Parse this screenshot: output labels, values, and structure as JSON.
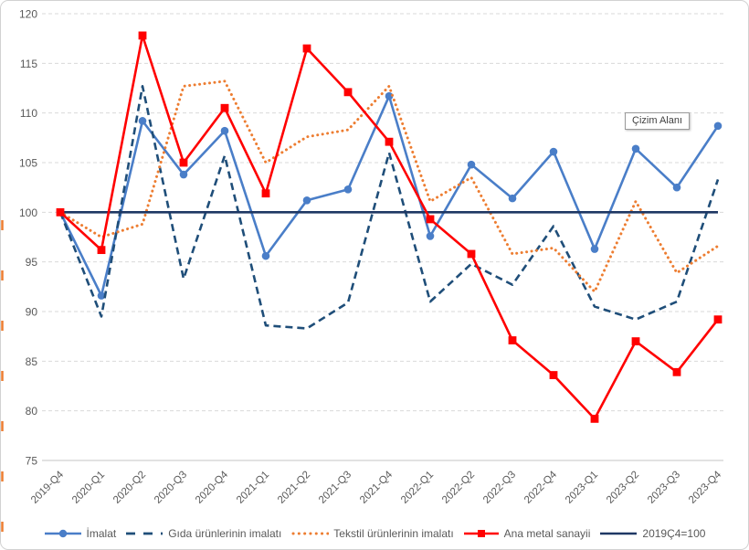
{
  "tooltip": {
    "label": "Çizim Alanı"
  },
  "chart_data": {
    "type": "line",
    "title": "",
    "xlabel": "",
    "ylabel": "",
    "ylim": [
      75,
      120
    ],
    "ytick_step": 5,
    "grid": true,
    "legend_position": "bottom",
    "categories": [
      "2019-Q4",
      "2020-Q1",
      "2020-Q2",
      "2020-Q3",
      "2020-Q4",
      "2021-Q1",
      "2021-Q2",
      "2021-Q3",
      "2021-Q4",
      "2022-Q1",
      "2022-Q2",
      "2022-Q3",
      "2022-Q4",
      "2023-Q1",
      "2023-Q2",
      "2023-Q3",
      "2023-Q4"
    ],
    "series": [
      {
        "id": "imalat",
        "name": "İmalat",
        "color": "#4a7ec8",
        "style": "solid",
        "marker": "circle",
        "draw_order": 0,
        "values": [
          100,
          91.6,
          109.2,
          103.8,
          108.2,
          95.6,
          101.2,
          102.3,
          111.7,
          97.6,
          104.8,
          101.4,
          106.1,
          96.3,
          106.4,
          102.5,
          108.7
        ]
      },
      {
        "id": "gida-urunlerinin-imalati",
        "name": "Gıda ürünlerinin imalatı",
        "color": "#1f4e79",
        "style": "dashed",
        "marker": "none",
        "draw_order": 1,
        "values": [
          100,
          89.5,
          112.7,
          93.3,
          105.7,
          88.6,
          88.3,
          90.9,
          106.0,
          91.0,
          94.8,
          92.7,
          98.6,
          90.5,
          89.2,
          91.0,
          103.3
        ]
      },
      {
        "id": "tekstil-urunlerinin-imalati",
        "name": "Tekstil ürünlerinin imalatı",
        "color": "#ed7d31",
        "style": "dotted",
        "marker": "none",
        "draw_order": 2,
        "values": [
          100,
          97.5,
          98.8,
          112.7,
          113.2,
          105.0,
          107.6,
          108.3,
          112.7,
          101.1,
          103.5,
          95.8,
          96.4,
          92.0,
          101.1,
          93.9,
          96.6
        ]
      },
      {
        "id": "ana-metal-sanayii",
        "name": "Ana metal sanayii",
        "color": "#ff0000",
        "style": "solid",
        "marker": "square",
        "draw_order": 4,
        "values": [
          100,
          96.2,
          117.8,
          105.0,
          110.5,
          101.9,
          116.5,
          112.1,
          107.1,
          99.3,
          95.8,
          87.1,
          83.6,
          79.2,
          87.0,
          83.9,
          89.2
        ]
      },
      {
        "id": "baseline-2019c4",
        "name": "2019Ç4=100",
        "color": "#1f3864",
        "style": "solid",
        "marker": "none",
        "draw_order": 3,
        "constant": 100
      }
    ]
  }
}
